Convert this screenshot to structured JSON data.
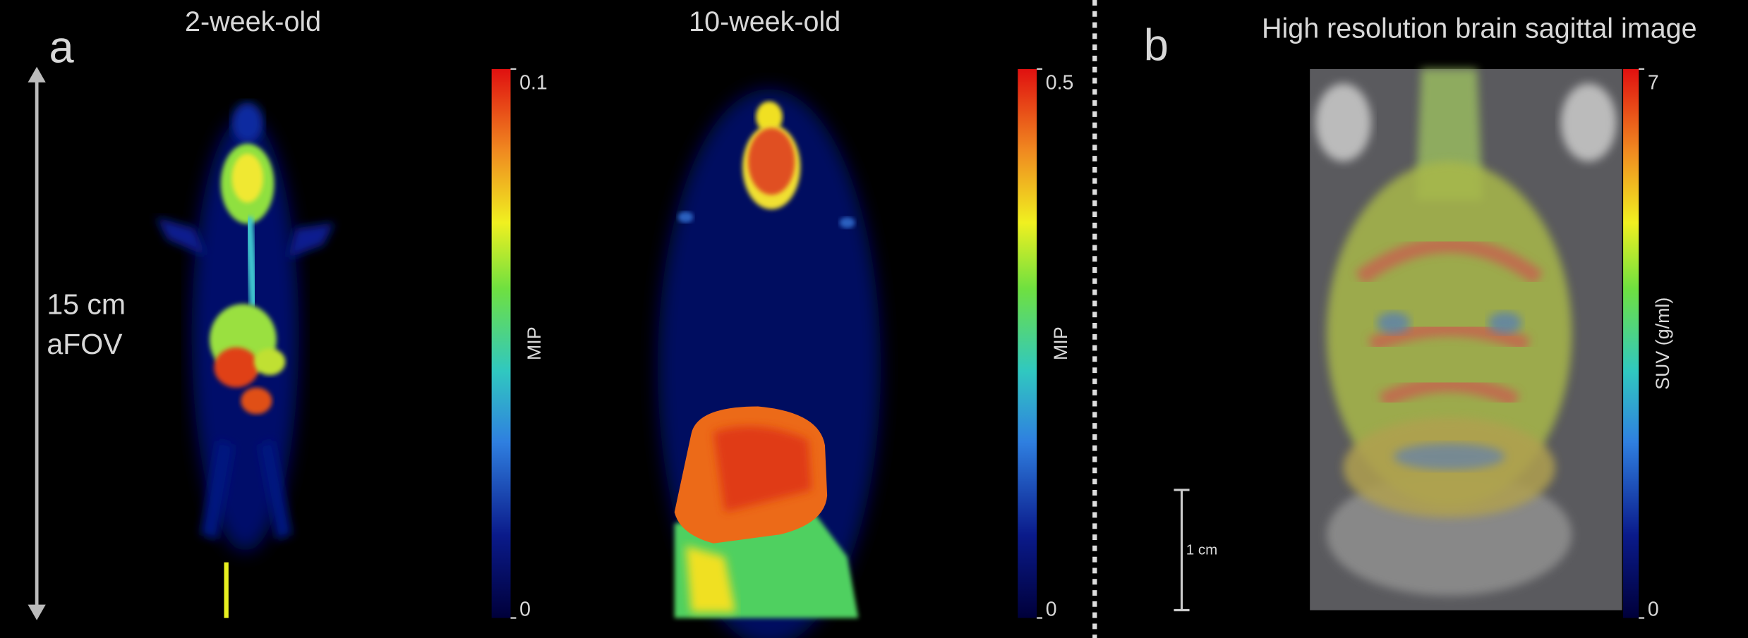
{
  "panel_a": {
    "label": "a",
    "left_title": "2-week-old",
    "right_title": "10-week-old",
    "fov_label": [
      "15 cm",
      "aFOV"
    ],
    "colorbars": [
      {
        "label": "MIP",
        "ticks": [
          0,
          0.1
        ]
      },
      {
        "label": "MIP",
        "ticks": [
          0,
          0.5
        ]
      }
    ]
  },
  "panel_b": {
    "label": "b",
    "title": "High resolution brain sagittal image",
    "scale_bar": "1 cm",
    "colorbar": {
      "label": "SUV (g/ml)",
      "ticks": [
        0,
        7
      ]
    }
  }
}
